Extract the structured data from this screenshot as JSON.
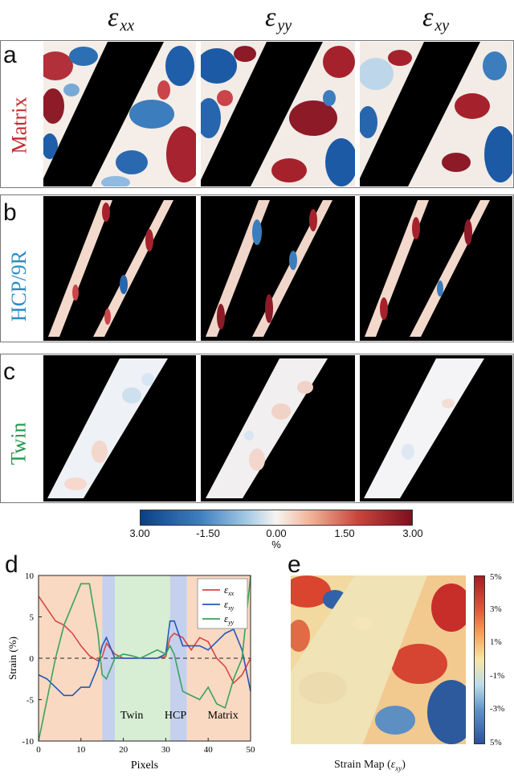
{
  "headers": {
    "exx": {
      "sym": "ε",
      "sub": "xx"
    },
    "eyy": {
      "sym": "ε",
      "sub": "yy"
    },
    "exy": {
      "sym": "ε",
      "sub": "xy"
    }
  },
  "rows": [
    {
      "letter": "a",
      "label": "Matrix",
      "color": "#c0282d"
    },
    {
      "letter": "b",
      "label": "HCP/9R",
      "color": "#2b8cc4"
    },
    {
      "letter": "c",
      "label": "Twin",
      "color": "#1f9a4a"
    }
  ],
  "colorbar": {
    "ticks": [
      "3.00",
      "-1.50",
      "0.00",
      "1.50",
      "3.00"
    ],
    "unit": "%",
    "colors": [
      "#0b3f86",
      "#3f7fbf",
      "#a9cde6",
      "#f7f4f0",
      "#f2b69c",
      "#c8463c",
      "#7d0f1e"
    ]
  },
  "panel_d": {
    "letter": "d",
    "ylabel": "Strain (%)",
    "xlabel": "Pixels",
    "region_labels": [
      "Twin",
      "HCP",
      "Matrix"
    ],
    "legend": [
      {
        "sym": "ε",
        "sub": "xx",
        "color": "#d94545"
      },
      {
        "sym": "ε",
        "sub": "xy",
        "color": "#2457b8"
      },
      {
        "sym": "ε",
        "sub": "yy",
        "color": "#3aa35a"
      }
    ],
    "xticks": [
      "0",
      "10",
      "20",
      "30",
      "40",
      "50"
    ],
    "yticks": [
      "10",
      "5",
      "0",
      "-5",
      "-10"
    ]
  },
  "panel_e": {
    "letter": "e",
    "caption": "Strain Map (",
    "caption_sym": "ε",
    "caption_sub": "xy",
    "caption_end": ")",
    "ticks": [
      "5%",
      "3%",
      "1%",
      "-1%",
      "-3%",
      "5%"
    ]
  },
  "chart_data": {
    "type": "line",
    "x": [
      0,
      2,
      4,
      6,
      8,
      10,
      12,
      14,
      15,
      16,
      18,
      20,
      22,
      24,
      26,
      28,
      30,
      31,
      32,
      34,
      36,
      38,
      40,
      42,
      44,
      46,
      48,
      50
    ],
    "series": [
      {
        "name": "εxx",
        "values": [
          7.5,
          6,
          4.5,
          4,
          3,
          1.5,
          0.3,
          -0.3,
          0.2,
          1.8,
          0.5,
          0,
          0,
          0,
          0,
          0,
          0.2,
          2.5,
          3,
          2.5,
          1,
          2.5,
          2,
          0,
          -1,
          -3,
          -2,
          0
        ]
      },
      {
        "name": "εxy",
        "values": [
          -2,
          -2.5,
          -3.5,
          -4.5,
          -4.5,
          -3.5,
          -3.5,
          -1,
          1.5,
          2.5,
          0,
          0,
          0,
          0,
          0,
          0,
          0.5,
          4.5,
          4.5,
          1.5,
          1.5,
          1.5,
          1,
          2,
          3,
          3.5,
          1,
          -4
        ]
      },
      {
        "name": "εyy",
        "values": [
          -10,
          -5,
          0,
          4,
          6.5,
          9,
          9,
          3,
          -2,
          -2.5,
          0,
          0.5,
          0.3,
          0,
          0.5,
          1,
          0.5,
          1.5,
          0.5,
          -4,
          -4.5,
          -5,
          -3.5,
          -5.5,
          -6,
          -2.5,
          0,
          10
        ]
      }
    ],
    "xlabel": "Pixels",
    "ylabel": "Strain (%)",
    "xlim": [
      0,
      50
    ],
    "ylim": [
      -10,
      10
    ]
  }
}
